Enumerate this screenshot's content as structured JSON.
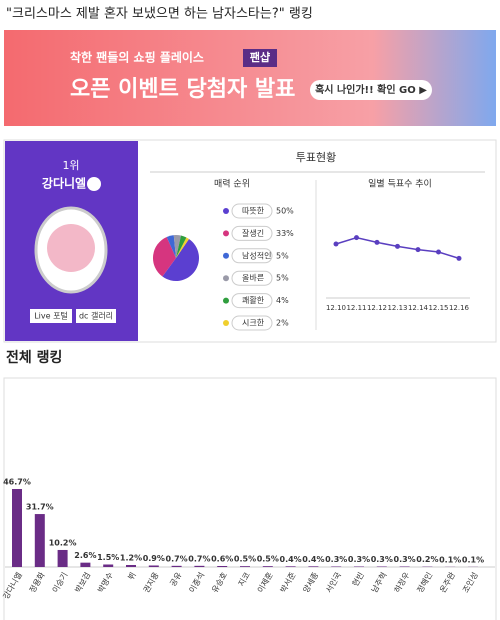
{
  "title": "\"크리스마스 제발 혼자 보냈으면 하는 남자스타는?\" 랭킹",
  "banner": {
    "tagline": "착한 팬들의 쇼핑 플레이스",
    "badge": "팬샵",
    "headline": "오픈 이벤트 당첨자 발표",
    "button": "혹시 나인가!! 확인 GO ▶"
  },
  "profile": {
    "rank": "1위",
    "name": "강다니엘",
    "links": [
      "Live 포털",
      "dc 갤러리"
    ]
  },
  "vote_section": "투표현황",
  "ranking_section": "전체 랭킹",
  "chart_data": [
    {
      "type": "pie",
      "title": "매력 순위",
      "categories": [
        "따뜻한",
        "잘생긴",
        "남성적인",
        "올바른",
        "쾌활한",
        "시크한"
      ],
      "values": [
        50,
        33,
        5,
        5,
        4,
        2
      ],
      "value_labels": [
        "50%",
        "33%",
        "5%",
        "5%",
        "4%",
        "2%"
      ],
      "colors": [
        "#5b3fd0",
        "#d6357f",
        "#3f68d6",
        "#9a9aa8",
        "#2f9e3e",
        "#f0cf2e"
      ]
    },
    {
      "type": "line",
      "title": "일별 득표수 추이",
      "categories": [
        "12.10",
        "12.11",
        "12.12",
        "12.13",
        "12.14",
        "12.15",
        "12.16"
      ],
      "values": [
        70,
        78,
        72,
        67,
        63,
        60,
        52
      ],
      "ylim": [
        0,
        100
      ],
      "color": "#5a3fc0"
    },
    {
      "type": "bar",
      "categories": [
        "강다니엘",
        "정용화",
        "이승기",
        "박보검",
        "박명수",
        "뷔",
        "권지용",
        "공유",
        "이종석",
        "유승호",
        "지코",
        "이제훈",
        "박서준",
        "양세종",
        "서인국",
        "현빈",
        "남주혁",
        "하정우",
        "정해인",
        "온주완",
        "조인성"
      ],
      "values": [
        46.7,
        31.7,
        10.2,
        2.6,
        1.5,
        1.2,
        0.9,
        0.7,
        0.7,
        0.6,
        0.5,
        0.5,
        0.4,
        0.4,
        0.3,
        0.3,
        0.3,
        0.3,
        0.2,
        0.1,
        0.1
      ],
      "value_labels": [
        "46.7%",
        "31.7%",
        "10.2%",
        "2.6%",
        "1.5%",
        "1.2%",
        "0.9%",
        "0.7%",
        "0.7%",
        "0.6%",
        "0.5%",
        "0.5%",
        "0.4%",
        "0.4%",
        "0.3%",
        "0.3%",
        "0.3%",
        "0.3%",
        "0.2%",
        "0.1%",
        "0.1%"
      ],
      "ylim": [
        0,
        100
      ],
      "color": "#6a2c86"
    }
  ]
}
